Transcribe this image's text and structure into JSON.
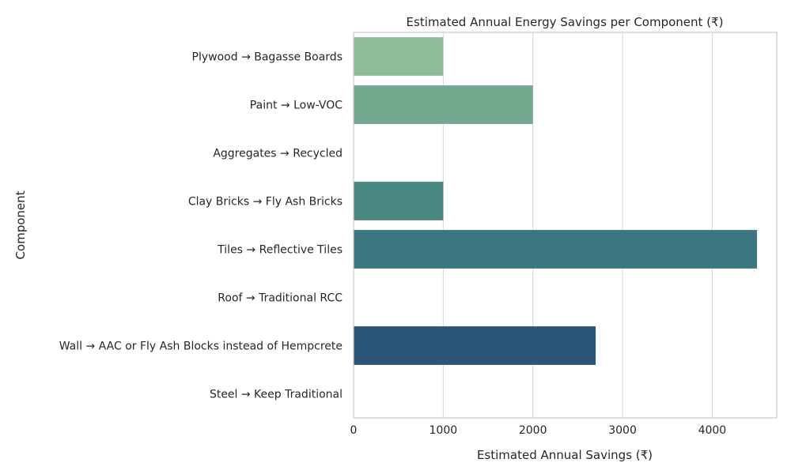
{
  "chart_data": {
    "type": "bar",
    "orientation": "horizontal",
    "title": "Estimated Annual Energy Savings per Component (₹)",
    "xlabel": "Estimated Annual Savings (₹)",
    "ylabel": "Component",
    "categories": [
      "Plywood → Bagasse Boards",
      "Paint → Low-VOC",
      "Aggregates → Recycled",
      "Clay Bricks → Fly Ash Bricks",
      "Tiles → Reflective Tiles",
      "Roof → Traditional RCC",
      "Wall → AAC or Fly Ash Blocks instead of Hempcrete",
      "Steel → Keep Traditional"
    ],
    "values": [
      1000,
      2000,
      0,
      1000,
      4500,
      0,
      2700,
      0
    ],
    "xlim": [
      0,
      4720
    ],
    "xticks": [
      0,
      1000,
      2000,
      3000,
      4000
    ],
    "grid": true,
    "legend": "none",
    "colors": [
      "#8fbc96",
      "#72a98f",
      "#5a9889",
      "#4a8884",
      "#3a777f",
      "#2d6579",
      "#2b5678",
      "#2a4a74"
    ]
  }
}
